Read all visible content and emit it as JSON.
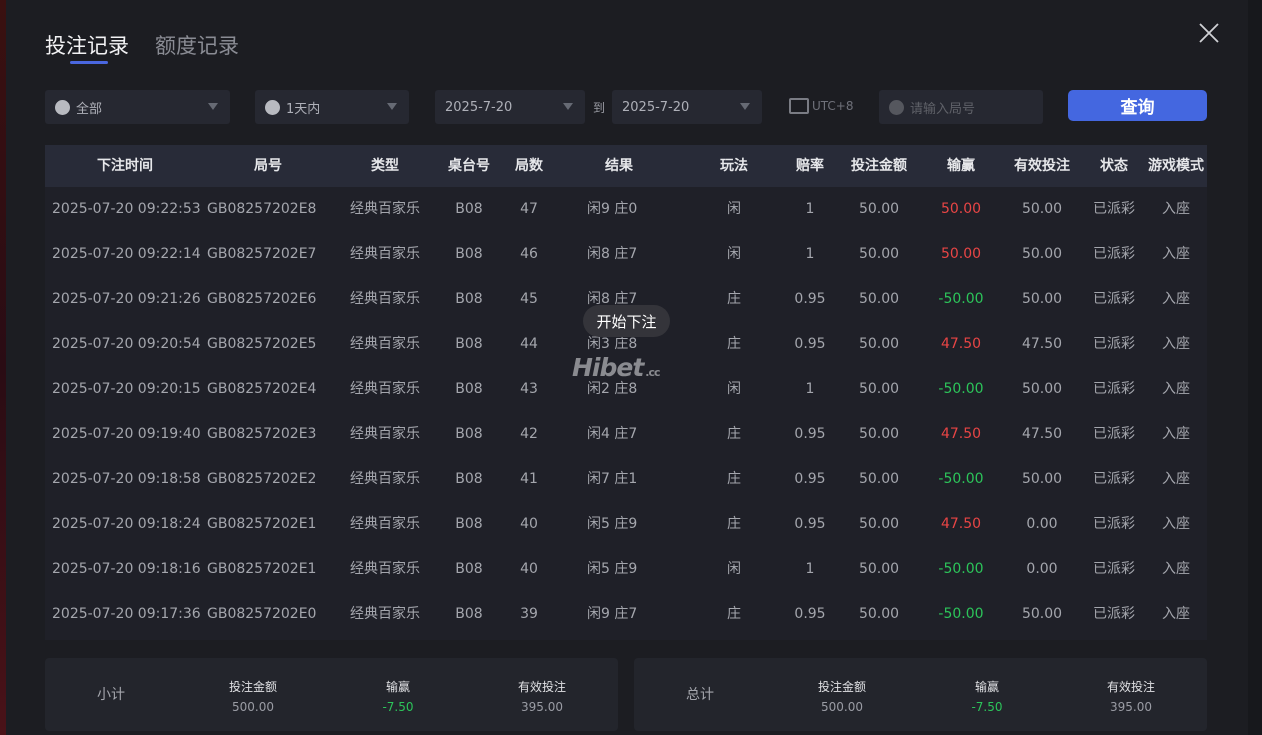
{
  "tabs": [
    {
      "label": "投注记录",
      "active": true
    },
    {
      "label": "额度记录",
      "active": false
    }
  ],
  "filters": {
    "game_type": "全部",
    "period": "1天内",
    "date_from": "2025-7-20",
    "to_label": "到",
    "date_to": "2025-7-20",
    "timezone": "UTC+8",
    "round_placeholder": "请输入局号",
    "query_label": "查询"
  },
  "table": {
    "headers": [
      "下注时间",
      "局号",
      "类型",
      "桌台号",
      "局数",
      "结果",
      "玩法",
      "赔率",
      "投注金额",
      "输赢",
      "有效投注",
      "状态",
      "游戏模式"
    ],
    "rows": [
      [
        "2025-07-20 09:22:53",
        "GB08257202E8",
        "经典百家乐",
        "B08",
        "47",
        "闲9 庄0",
        "闲",
        "1",
        "50.00",
        "50.00",
        "50.00",
        "已派彩",
        "入座"
      ],
      [
        "2025-07-20 09:22:14",
        "GB08257202E7",
        "经典百家乐",
        "B08",
        "46",
        "闲8 庄7",
        "闲",
        "1",
        "50.00",
        "50.00",
        "50.00",
        "已派彩",
        "入座"
      ],
      [
        "2025-07-20 09:21:26",
        "GB08257202E6",
        "经典百家乐",
        "B08",
        "45",
        "闲8 庄7",
        "庄",
        "0.95",
        "50.00",
        "-50.00",
        "50.00",
        "已派彩",
        "入座"
      ],
      [
        "2025-07-20 09:20:54",
        "GB08257202E5",
        "经典百家乐",
        "B08",
        "44",
        "闲3 庄8",
        "庄",
        "0.95",
        "50.00",
        "47.50",
        "47.50",
        "已派彩",
        "入座"
      ],
      [
        "2025-07-20 09:20:15",
        "GB08257202E4",
        "经典百家乐",
        "B08",
        "43",
        "闲2 庄8",
        "闲",
        "1",
        "50.00",
        "-50.00",
        "50.00",
        "已派彩",
        "入座"
      ],
      [
        "2025-07-20 09:19:40",
        "GB08257202E3",
        "经典百家乐",
        "B08",
        "42",
        "闲4 庄7",
        "庄",
        "0.95",
        "50.00",
        "47.50",
        "47.50",
        "已派彩",
        "入座"
      ],
      [
        "2025-07-20 09:18:58",
        "GB08257202E2",
        "经典百家乐",
        "B08",
        "41",
        "闲7 庄1",
        "庄",
        "0.95",
        "50.00",
        "-50.00",
        "50.00",
        "已派彩",
        "入座"
      ],
      [
        "2025-07-20 09:18:24",
        "GB08257202E1",
        "经典百家乐",
        "B08",
        "40",
        "闲5 庄9",
        "庄",
        "0.95",
        "50.00",
        "47.50",
        "0.00",
        "已派彩",
        "入座"
      ],
      [
        "2025-07-20 09:18:16",
        "GB08257202E1",
        "经典百家乐",
        "B08",
        "40",
        "闲5 庄9",
        "闲",
        "1",
        "50.00",
        "-50.00",
        "0.00",
        "已派彩",
        "入座"
      ],
      [
        "2025-07-20 09:17:36",
        "GB08257202E0",
        "经典百家乐",
        "B08",
        "39",
        "闲9 庄7",
        "庄",
        "0.95",
        "50.00",
        "-50.00",
        "50.00",
        "已派彩",
        "入座"
      ]
    ]
  },
  "toast": "开始下注",
  "watermark": "Hibet.cc 海博",
  "subtotal": {
    "label": "小计",
    "items": [
      {
        "k": "投注金额",
        "v": "500.00"
      },
      {
        "k": "输赢",
        "v": "-7.50"
      },
      {
        "k": "有效投注",
        "v": "395.00"
      }
    ]
  },
  "total": {
    "label": "总计",
    "items": [
      {
        "k": "投注金额",
        "v": "500.00"
      },
      {
        "k": "输赢",
        "v": "-7.50"
      },
      {
        "k": "有效投注",
        "v": "395.00"
      }
    ]
  },
  "colors": {
    "accent": "#4467e0",
    "win": "#e84545",
    "lose": "#2cc45a"
  }
}
